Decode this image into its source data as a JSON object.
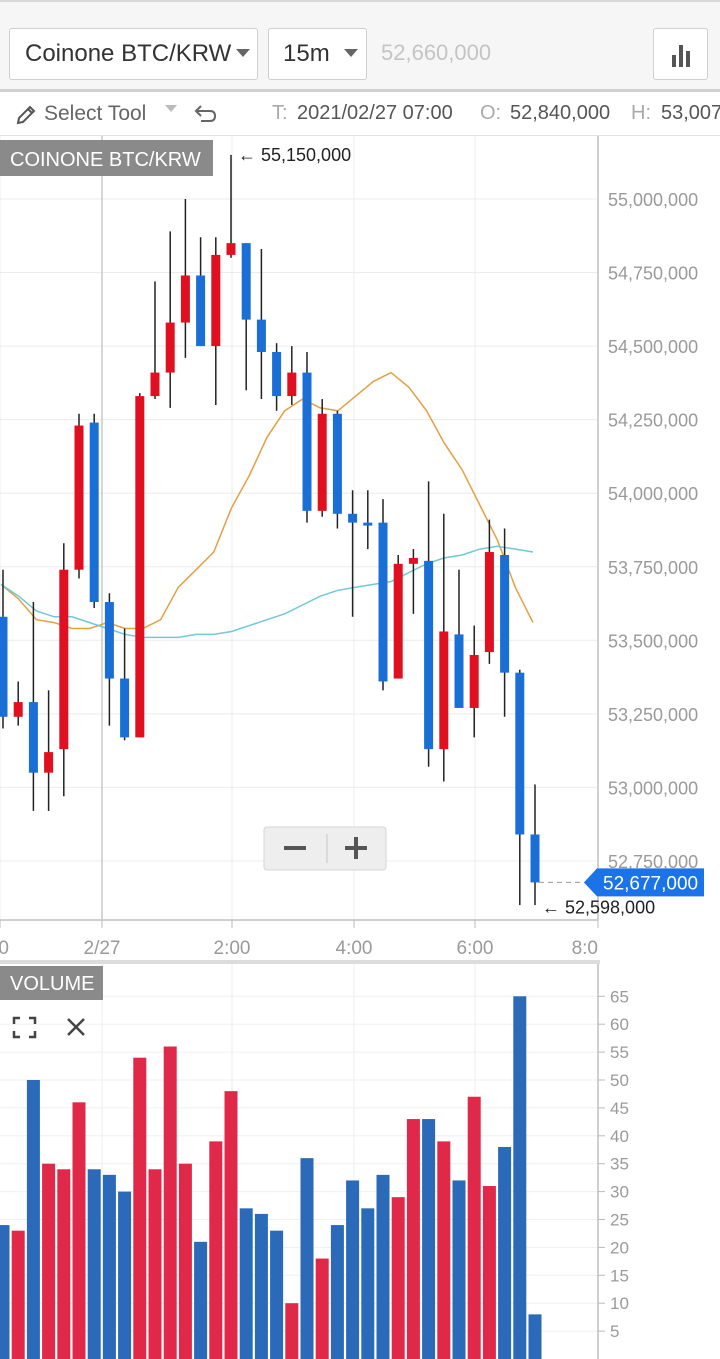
{
  "toolbar": {
    "symbol": "Coinone BTC/KRW",
    "interval": "15m",
    "price_placeholder": "52,660,000",
    "chart_type_icon": "bar-chart-icon"
  },
  "infobar": {
    "select_tool": "Select Tool",
    "undo_icon": "undo-icon",
    "time_label": "T:",
    "time_value": "2021/02/27 07:00",
    "open_label": "O:",
    "open_value": "52,840,000",
    "high_label": "H:",
    "high_value": "53,007"
  },
  "colors": {
    "up": "#e01020",
    "down": "#1a6fd6",
    "vol_up": "#e02848",
    "vol_down": "#2a6ab8",
    "ma_short": "#e4a040",
    "ma_long": "#70c8d8",
    "last_price_bg": "#1a73e8"
  },
  "chart_data": [
    {
      "type": "candlestick",
      "title": "COINONE BTC/KRW",
      "x_tick_labels": [
        "0",
        "2/27",
        "2:00",
        "4:00",
        "6:00",
        "8:0"
      ],
      "y_tick_labels": [
        "55,000,000",
        "54,750,000",
        "54,500,000",
        "54,250,000",
        "54,000,000",
        "53,750,000",
        "53,500,000",
        "53,250,000",
        "53,000,000",
        "52,750,000"
      ],
      "ylim": [
        52600000,
        55250000
      ],
      "grid": true,
      "max_label": "← 55,150,000",
      "min_label": "← 52,598,000",
      "last_price_label": "52,677,000",
      "candles": [
        {
          "o": 53580000,
          "h": 53740000,
          "l": 53200000,
          "c": 53240000
        },
        {
          "o": 53240000,
          "h": 53360000,
          "l": 53210000,
          "c": 53290000
        },
        {
          "o": 53290000,
          "h": 53630000,
          "l": 52920000,
          "c": 53050000
        },
        {
          "o": 53050000,
          "h": 53330000,
          "l": 52920000,
          "c": 53120000
        },
        {
          "o": 53130000,
          "h": 53830000,
          "l": 52970000,
          "c": 53740000
        },
        {
          "o": 53740000,
          "h": 54270000,
          "l": 53710000,
          "c": 54230000
        },
        {
          "o": 54240000,
          "h": 54270000,
          "l": 53610000,
          "c": 53630000
        },
        {
          "o": 53630000,
          "h": 53660000,
          "l": 53210000,
          "c": 53370000
        },
        {
          "o": 53370000,
          "h": 53540000,
          "l": 53160000,
          "c": 53170000
        },
        {
          "o": 53170000,
          "h": 54340000,
          "l": 53170000,
          "c": 54330000
        },
        {
          "o": 54330000,
          "h": 54720000,
          "l": 54320000,
          "c": 54410000
        },
        {
          "o": 54410000,
          "h": 54890000,
          "l": 54290000,
          "c": 54580000
        },
        {
          "o": 54580000,
          "h": 55000000,
          "l": 54460000,
          "c": 54740000
        },
        {
          "o": 54740000,
          "h": 54870000,
          "l": 54500000,
          "c": 54500000
        },
        {
          "o": 54500000,
          "h": 54870000,
          "l": 54300000,
          "c": 54810000
        },
        {
          "o": 54810000,
          "h": 55150000,
          "l": 54800000,
          "c": 54850000
        },
        {
          "o": 54850000,
          "h": 54850000,
          "l": 54350000,
          "c": 54590000
        },
        {
          "o": 54590000,
          "h": 54830000,
          "l": 54320000,
          "c": 54480000
        },
        {
          "o": 54480000,
          "h": 54510000,
          "l": 54280000,
          "c": 54330000
        },
        {
          "o": 54330000,
          "h": 54500000,
          "l": 54300000,
          "c": 54410000
        },
        {
          "o": 54410000,
          "h": 54480000,
          "l": 53900000,
          "c": 53940000
        },
        {
          "o": 53940000,
          "h": 54320000,
          "l": 53920000,
          "c": 54270000
        },
        {
          "o": 54270000,
          "h": 54280000,
          "l": 53880000,
          "c": 53930000
        },
        {
          "o": 53930000,
          "h": 54010000,
          "l": 53580000,
          "c": 53900000
        },
        {
          "o": 53900000,
          "h": 54010000,
          "l": 53810000,
          "c": 53890000
        },
        {
          "o": 53900000,
          "h": 53980000,
          "l": 53330000,
          "c": 53360000
        },
        {
          "o": 53370000,
          "h": 53790000,
          "l": 53370000,
          "c": 53760000
        },
        {
          "o": 53760000,
          "h": 53810000,
          "l": 53590000,
          "c": 53780000
        },
        {
          "o": 53770000,
          "h": 54040000,
          "l": 53070000,
          "c": 53130000
        },
        {
          "o": 53130000,
          "h": 53930000,
          "l": 53020000,
          "c": 53530000
        },
        {
          "o": 53520000,
          "h": 53740000,
          "l": 53290000,
          "c": 53270000
        },
        {
          "o": 53270000,
          "h": 53550000,
          "l": 53170000,
          "c": 53450000
        },
        {
          "o": 53460000,
          "h": 53910000,
          "l": 53420000,
          "c": 53800000
        },
        {
          "o": 53790000,
          "h": 53880000,
          "l": 53240000,
          "c": 53390000
        },
        {
          "o": 53390000,
          "h": 53400000,
          "l": 52600000,
          "c": 52840000
        },
        {
          "o": 52840000,
          "h": 53010000,
          "l": 52600000,
          "c": 52677000
        }
      ],
      "ma_short": [
        53690000,
        53640000,
        53570000,
        53560000,
        53540000,
        53540000,
        53560000,
        53540000,
        53540000,
        53570000,
        53680000,
        53740000,
        53800000,
        53950000,
        54060000,
        54190000,
        54280000,
        54320000,
        54290000,
        54280000,
        54330000,
        54380000,
        54410000,
        54360000,
        54280000,
        54170000,
        54080000,
        53960000,
        53840000,
        53680000,
        53560000
      ],
      "ma_long": [
        53690000,
        53650000,
        53600000,
        53580000,
        53580000,
        53560000,
        53540000,
        53520000,
        53510000,
        53510000,
        53510000,
        53520000,
        53520000,
        53530000,
        53550000,
        53570000,
        53590000,
        53620000,
        53650000,
        53670000,
        53680000,
        53690000,
        53700000,
        53730000,
        53760000,
        53780000,
        53790000,
        53810000,
        53820000,
        53810000,
        53800000
      ]
    },
    {
      "type": "bar",
      "title": "VOLUME",
      "y_tick_labels": [
        "65",
        "60",
        "55",
        "50",
        "45",
        "40",
        "35",
        "30",
        "25",
        "20",
        "15",
        "10",
        "5"
      ],
      "ylim": [
        0,
        68
      ],
      "grid": true,
      "values": [
        24,
        23,
        50,
        35,
        34,
        46,
        34,
        33,
        30,
        54,
        34,
        56,
        35,
        21,
        39,
        48,
        27,
        26,
        23,
        10,
        36,
        18,
        24,
        32,
        27,
        33,
        29,
        43,
        43,
        39,
        32,
        47,
        31,
        38,
        65,
        8
      ],
      "directions": [
        "down",
        "up",
        "down",
        "up",
        "up",
        "up",
        "down",
        "down",
        "down",
        "up",
        "up",
        "up",
        "up",
        "down",
        "up",
        "up",
        "down",
        "down",
        "down",
        "up",
        "down",
        "up",
        "down",
        "down",
        "down",
        "down",
        "up",
        "up",
        "down",
        "up",
        "down",
        "up",
        "up",
        "down",
        "down",
        "down"
      ]
    }
  ]
}
